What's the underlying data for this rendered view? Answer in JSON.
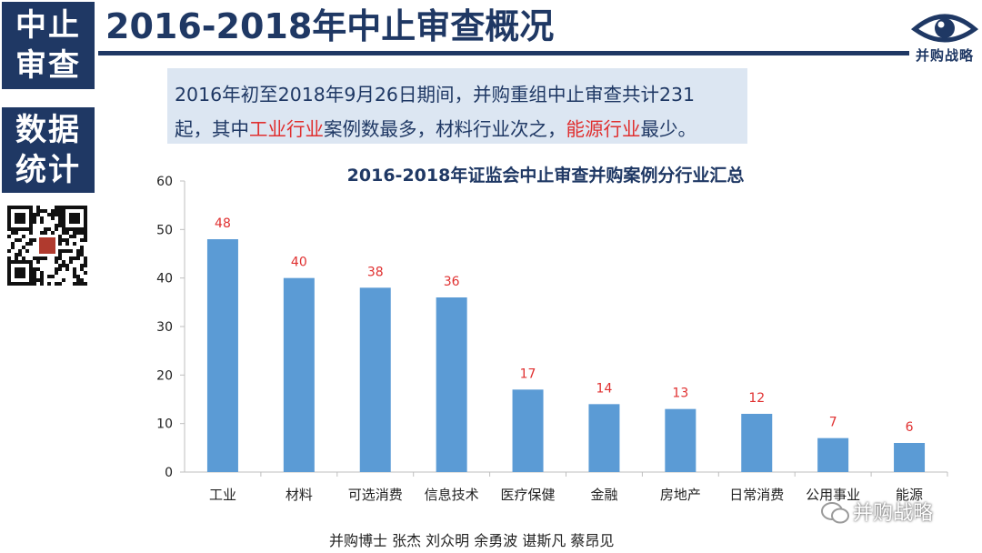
{
  "side": {
    "box1": [
      "中止",
      "审查"
    ],
    "box2": [
      "数据",
      "统计"
    ]
  },
  "header": {
    "title": "2016-2018年中止审查概况",
    "logo_text": "并购战略"
  },
  "summary": {
    "part1": "2016年初至2018年9月26日期间，并购重组中止审查共计231",
    "part2": "起，其中",
    "highlight1": "工业行业",
    "part3": "案例数最多，材料行业次之，",
    "highlight2": "能源行业",
    "part4": "最少。"
  },
  "footer": {
    "authors": "并购博士  张杰  刘众明  余勇波  谌斯凡  蔡昂见"
  },
  "watermark": {
    "text": "并购战略"
  },
  "colors": {
    "navy": "#1f3864",
    "bar": "#5b9bd5",
    "label": "#e03030",
    "summary_bg": "#dce6f2"
  },
  "chart_data": {
    "type": "bar",
    "title": "2016-2018年证监会中止审查并购案例分行业汇总",
    "categories": [
      "工业",
      "材料",
      "可选消费",
      "信息技术",
      "医疗保健",
      "金融",
      "房地产",
      "日常消费",
      "公用事业",
      "能源"
    ],
    "values": [
      48,
      40,
      38,
      36,
      17,
      14,
      13,
      12,
      7,
      6
    ],
    "ylim": [
      0,
      60
    ],
    "yticks": [
      0,
      10,
      20,
      30,
      40,
      50,
      60
    ],
    "data_labels": true,
    "grid": false,
    "legend": "none"
  }
}
